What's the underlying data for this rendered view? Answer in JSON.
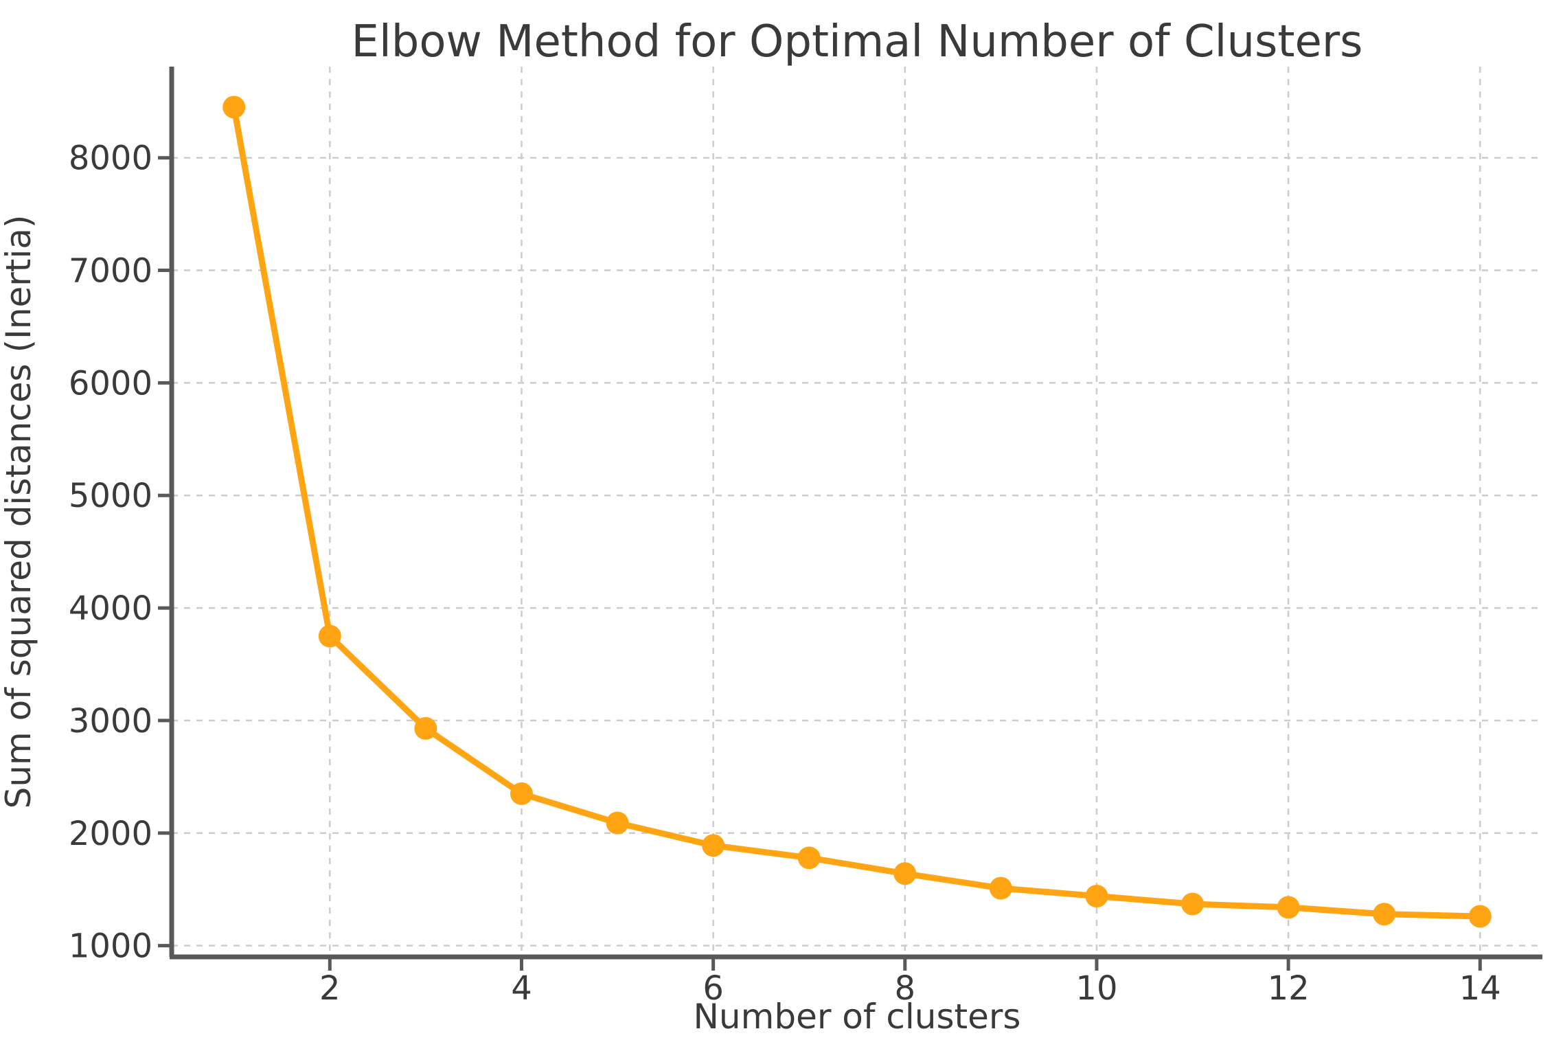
{
  "chart_data": {
    "type": "line",
    "title": "Elbow Method for Optimal Number of Clusters",
    "xlabel": "Number of clusters",
    "ylabel": "Sum of squared distances (Inertia)",
    "x": [
      1,
      2,
      3,
      4,
      5,
      6,
      7,
      8,
      9,
      10,
      11,
      12,
      13,
      14
    ],
    "series": [
      {
        "name": "Inertia",
        "values": [
          8450,
          3750,
          2930,
          2350,
          2090,
          1890,
          1780,
          1640,
          1510,
          1440,
          1370,
          1340,
          1280,
          1260
        ]
      }
    ],
    "x_ticks": [
      2,
      4,
      6,
      8,
      10,
      12,
      14
    ],
    "y_ticks": [
      1000,
      2000,
      3000,
      4000,
      5000,
      6000,
      7000,
      8000
    ],
    "xlim": [
      0.35,
      14.65
    ],
    "ylim": [
      900,
      8810
    ],
    "grid": true,
    "grid_style": "dashed",
    "legend_position": "none",
    "colors": {
      "line": "#FFA513",
      "marker": "#FFA513",
      "text": "#3a3a3a",
      "grid": "#cccccc",
      "spine": "#595959",
      "background": "#ffffff"
    }
  }
}
